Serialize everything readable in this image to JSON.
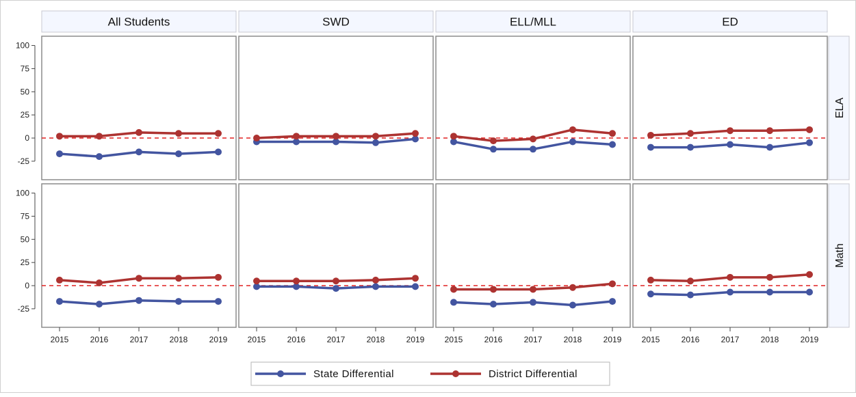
{
  "colors": {
    "state": "#4355a0",
    "district": "#ad3331",
    "reference_line": "#e02020",
    "panel_border": "#8c8c8c",
    "header_bg": "#f4f7ff",
    "header_border": "#c8c8d2"
  },
  "chart_data": {
    "type": "line",
    "layout": "panel grid: 4 columns x 2 rows",
    "columns": [
      "All Students",
      "SWD",
      "ELL/MLL",
      "ED"
    ],
    "rows": [
      "ELA",
      "Math"
    ],
    "x": [
      "2015",
      "2016",
      "2017",
      "2018",
      "2019"
    ],
    "yticks": [
      -25,
      0,
      25,
      50,
      75,
      100
    ],
    "ylim": [
      -45,
      110
    ],
    "reference_line_y": 0,
    "grid": false,
    "legend_position": "bottom-center",
    "legend": [
      "State Differential",
      "District Differential"
    ],
    "panels": [
      {
        "row": "ELA",
        "column": "All Students",
        "series": [
          {
            "name": "State Differential",
            "values": [
              -17,
              -20,
              -15,
              -17,
              -15
            ]
          },
          {
            "name": "District Differential",
            "values": [
              2,
              2,
              6,
              5,
              5
            ]
          }
        ]
      },
      {
        "row": "ELA",
        "column": "SWD",
        "series": [
          {
            "name": "State Differential",
            "values": [
              -4,
              -4,
              -4,
              -5,
              -1
            ]
          },
          {
            "name": "District Differential",
            "values": [
              0,
              2,
              2,
              2,
              5
            ]
          }
        ]
      },
      {
        "row": "ELA",
        "column": "ELL/MLL",
        "series": [
          {
            "name": "State Differential",
            "values": [
              -4,
              -12,
              -12,
              -4,
              -7
            ]
          },
          {
            "name": "District Differential",
            "values": [
              2,
              -3,
              -1,
              9,
              5
            ]
          }
        ]
      },
      {
        "row": "ELA",
        "column": "ED",
        "series": [
          {
            "name": "State Differential",
            "values": [
              -10,
              -10,
              -7,
              -10,
              -5
            ]
          },
          {
            "name": "District Differential",
            "values": [
              3,
              5,
              8,
              8,
              9
            ]
          }
        ]
      },
      {
        "row": "Math",
        "column": "All Students",
        "series": [
          {
            "name": "State Differential",
            "values": [
              -17,
              -20,
              -16,
              -17,
              -17
            ]
          },
          {
            "name": "District Differential",
            "values": [
              6,
              3,
              8,
              8,
              9
            ]
          }
        ]
      },
      {
        "row": "Math",
        "column": "SWD",
        "series": [
          {
            "name": "State Differential",
            "values": [
              -1,
              -1,
              -3,
              -1,
              -1
            ]
          },
          {
            "name": "District Differential",
            "values": [
              5,
              5,
              5,
              6,
              8
            ]
          }
        ]
      },
      {
        "row": "Math",
        "column": "ELL/MLL",
        "series": [
          {
            "name": "State Differential",
            "values": [
              -18,
              -20,
              -18,
              -21,
              -17
            ]
          },
          {
            "name": "District Differential",
            "values": [
              -4,
              -4,
              -4,
              -2,
              2
            ]
          }
        ]
      },
      {
        "row": "Math",
        "column": "ED",
        "series": [
          {
            "name": "State Differential",
            "values": [
              -9,
              -10,
              -7,
              -7,
              -7
            ]
          },
          {
            "name": "District Differential",
            "values": [
              6,
              5,
              9,
              9,
              12
            ]
          }
        ]
      }
    ]
  }
}
